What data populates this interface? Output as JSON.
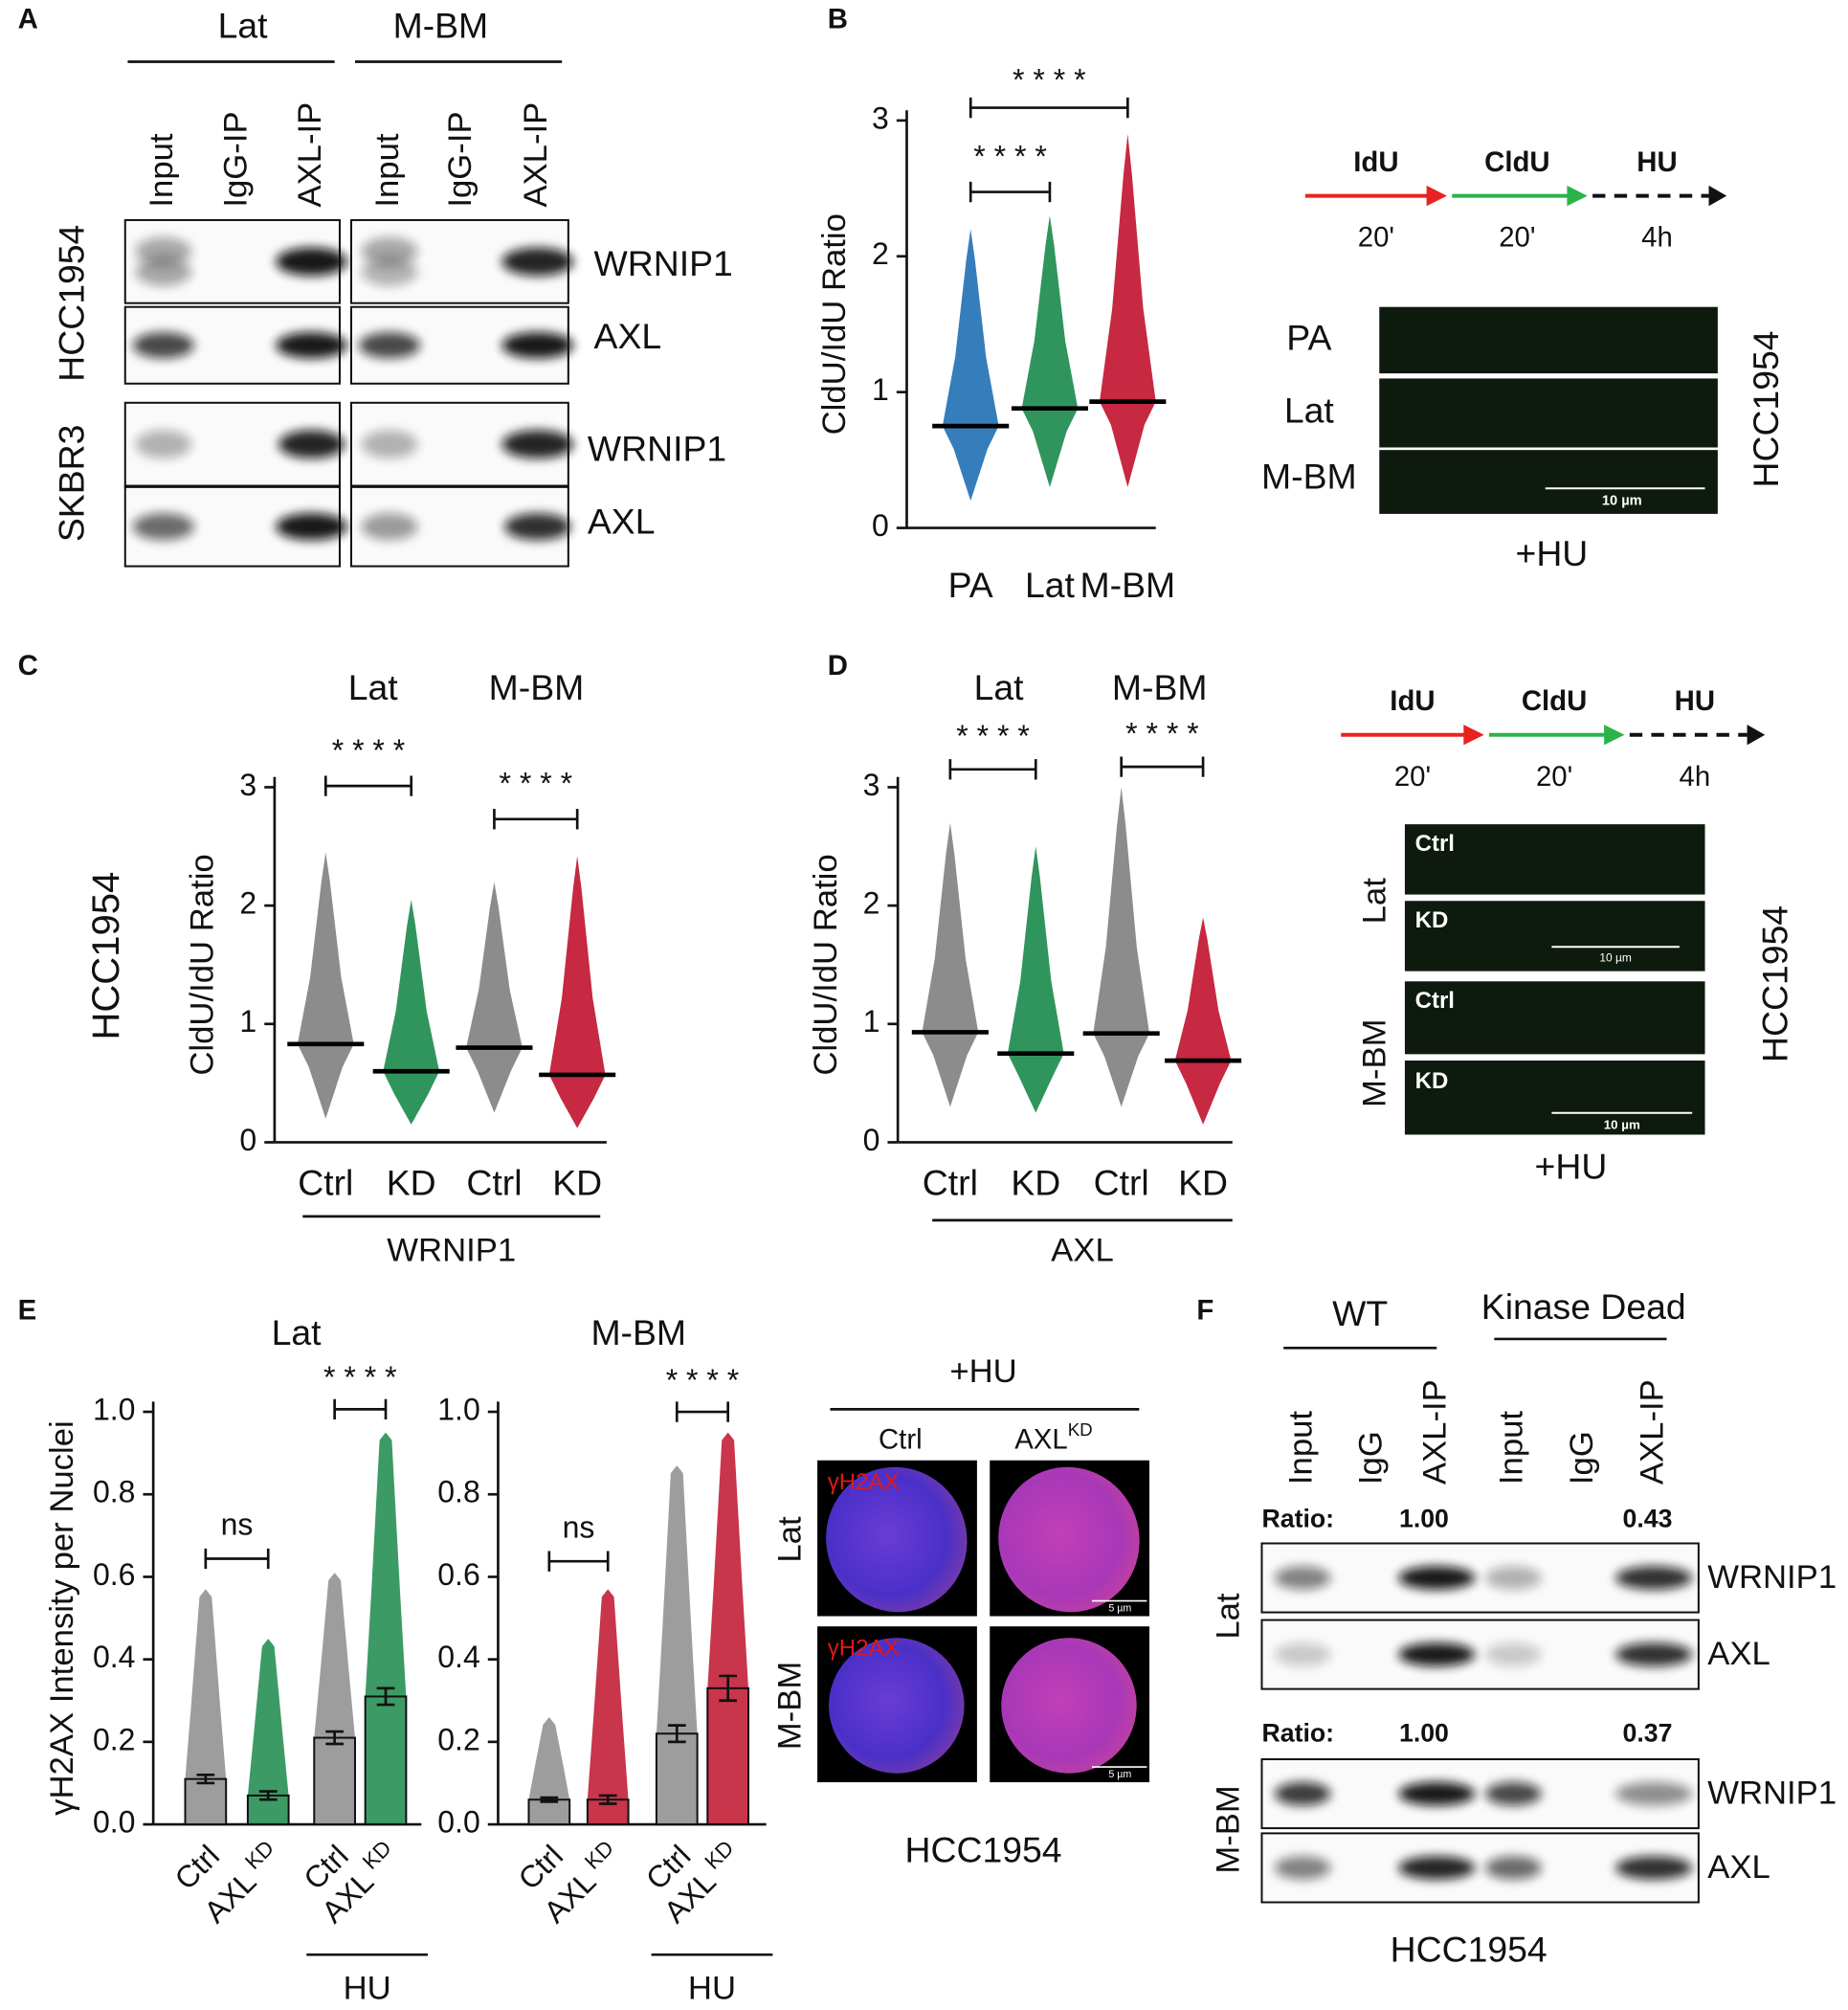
{
  "panel_labels": [
    "A",
    "B",
    "C",
    "D",
    "E",
    "F"
  ],
  "panel_a": {
    "groups": [
      "Lat",
      "M-BM"
    ],
    "lanes": [
      "Input",
      "IgG-IP",
      "AXL-IP",
      "Input",
      "IgG-IP",
      "AXL-IP"
    ],
    "cell_lines": [
      "HCC1954",
      "SKBR3"
    ],
    "proteins": [
      "WRNIP1",
      "AXL",
      "WRNIP1",
      "AXL"
    ]
  },
  "panel_b_images": {
    "steps": [
      "IdU",
      "CldU",
      "HU"
    ],
    "times": [
      "20'",
      "20'",
      "4h"
    ],
    "rows": [
      "PA",
      "Lat",
      "M-BM"
    ],
    "scale_bar": "10 µm",
    "treatment": "+HU",
    "cell_line": "HCC1954"
  },
  "panel_c_side_label": "HCC1954",
  "panel_d_images": {
    "steps": [
      "IdU",
      "CldU",
      "HU"
    ],
    "times": [
      "20'",
      "20'",
      "4h"
    ],
    "groups": [
      "Lat",
      "M-BM"
    ],
    "rows": [
      "Ctrl",
      "KD",
      "Ctrl",
      "KD"
    ],
    "scale_bars": [
      "10 µm",
      "10 µm"
    ],
    "treatment": "+HU",
    "cell_line": "HCC1954"
  },
  "panel_e_images": {
    "treatment": "+HU",
    "columns": [
      "Ctrl",
      "AXL"
    ],
    "column_superscript": "KD",
    "rows": [
      "Lat",
      "M-BM"
    ],
    "stains": [
      "γH2AX",
      "γH2AX"
    ],
    "scale_bars": [
      "5 µm",
      "5 µm"
    ],
    "cell_line": "HCC1954"
  },
  "panel_f": {
    "groups": [
      "WT",
      "Kinase Dead"
    ],
    "lanes": [
      "Input",
      "IgG",
      "AXL-IP",
      "Input",
      "IgG",
      "AXL-IP"
    ],
    "ratio_label": "Ratio:",
    "blots": [
      {
        "cell": "Lat",
        "ratios": [
          "1.00",
          "0.43"
        ],
        "proteins": [
          "WRNIP1",
          "AXL"
        ]
      },
      {
        "cell": "M-BM",
        "ratios": [
          "1.00",
          "0.37"
        ],
        "proteins": [
          "WRNIP1",
          "AXL"
        ]
      }
    ],
    "cell_line": "HCC1954"
  },
  "chart_data": [
    {
      "type": "strip",
      "ylabel": "CldU/IdU Ratio",
      "categories": [
        "PA",
        "Lat",
        "M-BM"
      ],
      "colors": [
        "#1f6fb4",
        "#1a8a4a",
        "#c0122c"
      ],
      "medians": [
        0.75,
        0.88,
        0.93
      ],
      "mins": [
        0.2,
        0.3,
        0.3
      ],
      "maxs": [
        2.2,
        2.3,
        2.9
      ],
      "ylim": [
        0,
        3
      ],
      "yticks": [
        0,
        1,
        2,
        3
      ],
      "significance": [
        "* * * *",
        "* * * *"
      ]
    },
    {
      "type": "strip",
      "ylabel": "CldU/IdU Ratio",
      "groups": [
        "Lat",
        "M-BM"
      ],
      "group_label": "WRNIP1",
      "categories": [
        "Ctrl",
        "KD",
        "Ctrl",
        "KD"
      ],
      "colors": [
        "#7f7f7f",
        "#1a8a4a",
        "#7f7f7f",
        "#c0122c"
      ],
      "medians": [
        0.83,
        0.6,
        0.8,
        0.57
      ],
      "mins": [
        0.2,
        0.15,
        0.25,
        0.12
      ],
      "maxs": [
        2.45,
        2.05,
        2.2,
        2.42
      ],
      "ylim": [
        0,
        3
      ],
      "yticks": [
        0,
        1,
        2,
        3
      ],
      "significance": [
        "* * * *",
        "* * * *"
      ]
    },
    {
      "type": "strip",
      "ylabel": "CldU/IdU Ratio",
      "groups": [
        "Lat",
        "M-BM"
      ],
      "group_label": "AXL",
      "categories": [
        "Ctrl",
        "KD",
        "Ctrl",
        "KD"
      ],
      "colors": [
        "#7f7f7f",
        "#1a8a4a",
        "#7f7f7f",
        "#c0122c"
      ],
      "medians": [
        0.93,
        0.75,
        0.92,
        0.69
      ],
      "mins": [
        0.3,
        0.25,
        0.3,
        0.15
      ],
      "maxs": [
        2.7,
        2.5,
        3.0,
        1.9
      ],
      "ylim": [
        0,
        3
      ],
      "yticks": [
        0,
        1,
        2,
        3
      ],
      "significance": [
        "* * * *",
        "* * * *"
      ]
    },
    {
      "type": "bar",
      "title": "Lat",
      "ylabel": "γH2AX Intensity per Nuclei",
      "group_label": "HU",
      "categories": [
        "Ctrl",
        "AXL",
        "Ctrl",
        "AXL"
      ],
      "category_superscripts": [
        null,
        "KD",
        null,
        "KD"
      ],
      "colors": [
        "#8c8c8c",
        "#1a8a4a",
        "#8c8c8c",
        "#1a8a4a"
      ],
      "values": [
        0.11,
        0.07,
        0.21,
        0.31
      ],
      "errors": [
        0.01,
        0.01,
        0.015,
        0.02
      ],
      "maxs": [
        0.57,
        0.45,
        0.61,
        0.95
      ],
      "ylim": [
        0,
        1
      ],
      "yticks": [
        {
          "value": 0,
          "label": "0.0"
        },
        0.2,
        0.4,
        0.6,
        0.8,
        {
          "value": 1,
          "label": "1.0"
        }
      ],
      "significance": [
        "ns",
        "* * * *"
      ]
    },
    {
      "type": "bar",
      "title": "M-BM",
      "group_label": "HU",
      "categories": [
        "Ctrl",
        "AXL",
        "Ctrl",
        "AXL"
      ],
      "category_superscripts": [
        null,
        "KD",
        null,
        "KD"
      ],
      "colors": [
        "#8c8c8c",
        "#c0122c",
        "#8c8c8c",
        "#c0122c"
      ],
      "values": [
        0.06,
        0.06,
        0.22,
        0.33
      ],
      "errors": [
        0.005,
        0.01,
        0.02,
        0.03
      ],
      "maxs": [
        0.26,
        0.57,
        0.87,
        0.95
      ],
      "ylim": [
        0,
        1
      ],
      "yticks": [
        {
          "value": 0,
          "label": "0.0"
        },
        0.2,
        0.4,
        0.6,
        0.8,
        {
          "value": 1,
          "label": "1.0"
        }
      ],
      "significance": [
        "ns",
        "* * * *"
      ]
    }
  ]
}
